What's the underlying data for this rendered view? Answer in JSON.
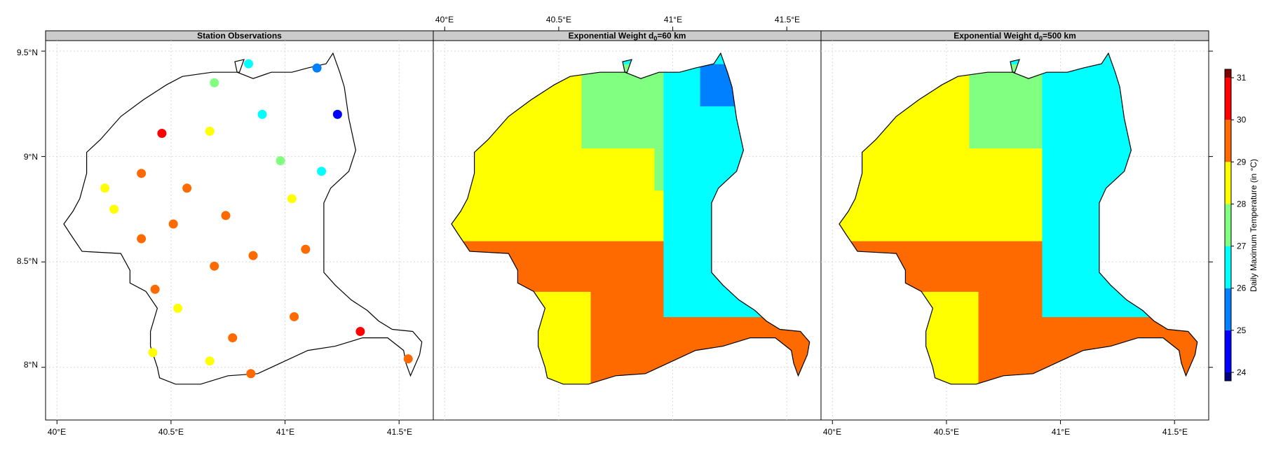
{
  "chart_data": [
    {
      "type": "scatter",
      "title": "Station Observations",
      "x_ticks": [
        "40°E",
        "40.5°E",
        "41°E",
        "41.5°E"
      ],
      "y_ticks": [
        "8°N",
        "8.5°N",
        "9°N",
        "9.5°N"
      ],
      "xlim": [
        39.95,
        41.65
      ],
      "ylim": [
        7.75,
        9.55
      ],
      "grid": true,
      "points": [
        {
          "lon": 40.84,
          "lat": 9.44,
          "value": 26.5
        },
        {
          "lon": 41.14,
          "lat": 9.42,
          "value": 25.5
        },
        {
          "lon": 40.69,
          "lat": 9.35,
          "value": 27.5
        },
        {
          "lon": 40.9,
          "lat": 9.2,
          "value": 26.5
        },
        {
          "lon": 41.23,
          "lat": 9.2,
          "value": 24.5
        },
        {
          "lon": 40.46,
          "lat": 9.11,
          "value": 30.5
        },
        {
          "lon": 40.67,
          "lat": 9.12,
          "value": 28.5
        },
        {
          "lon": 40.98,
          "lat": 8.98,
          "value": 27.5
        },
        {
          "lon": 40.37,
          "lat": 8.92,
          "value": 29.5
        },
        {
          "lon": 41.16,
          "lat": 8.93,
          "value": 26.5
        },
        {
          "lon": 40.21,
          "lat": 8.85,
          "value": 28.5
        },
        {
          "lon": 40.57,
          "lat": 8.85,
          "value": 29.5
        },
        {
          "lon": 41.03,
          "lat": 8.8,
          "value": 28.5
        },
        {
          "lon": 40.25,
          "lat": 8.75,
          "value": 28.5
        },
        {
          "lon": 40.74,
          "lat": 8.72,
          "value": 29.5
        },
        {
          "lon": 40.51,
          "lat": 8.68,
          "value": 29.5
        },
        {
          "lon": 40.37,
          "lat": 8.61,
          "value": 29.5
        },
        {
          "lon": 41.09,
          "lat": 8.56,
          "value": 29.5
        },
        {
          "lon": 40.86,
          "lat": 8.53,
          "value": 29.5
        },
        {
          "lon": 40.69,
          "lat": 8.48,
          "value": 29.5
        },
        {
          "lon": 40.43,
          "lat": 8.37,
          "value": 29.5
        },
        {
          "lon": 40.53,
          "lat": 8.28,
          "value": 28.5
        },
        {
          "lon": 41.04,
          "lat": 8.24,
          "value": 29.5
        },
        {
          "lon": 41.33,
          "lat": 8.17,
          "value": 30.5
        },
        {
          "lon": 40.77,
          "lat": 8.14,
          "value": 29.5
        },
        {
          "lon": 40.42,
          "lat": 8.07,
          "value": 28.5
        },
        {
          "lon": 41.54,
          "lat": 8.04,
          "value": 29.5
        },
        {
          "lon": 40.67,
          "lat": 8.03,
          "value": 28.5
        },
        {
          "lon": 40.85,
          "lat": 7.97,
          "value": 29.5
        }
      ]
    },
    {
      "type": "heatmap",
      "title_prefix": "Exponential Weight d",
      "title_sub": "0",
      "title_suffix": "=60 km",
      "x_ticks": [
        "40°E",
        "40.5°E",
        "41°E",
        "41.5°E"
      ],
      "xlim": [
        39.95,
        41.65
      ],
      "ylim": [
        7.75,
        9.55
      ],
      "zones": [
        {
          "value": 29.5,
          "region": "west-south-east lowlands"
        },
        {
          "value": 28.5,
          "region": "central band and southern pocket"
        },
        {
          "value": 27.5,
          "region": "northern band"
        },
        {
          "value": 26.5,
          "region": "northeast highlands"
        },
        {
          "value": 25.5,
          "region": "far northeast corner"
        }
      ]
    },
    {
      "type": "heatmap",
      "title_prefix": "Exponential Weight d",
      "title_sub": "0",
      "title_suffix": "=500 km",
      "x_ticks": [
        "40°E",
        "40.5°E",
        "41°E",
        "41.5°E"
      ],
      "xlim": [
        39.95,
        41.65
      ],
      "ylim": [
        7.75,
        9.55
      ],
      "zones": [
        {
          "value": 29.5,
          "region": "west-south-east lowlands"
        },
        {
          "value": 28.5,
          "region": "central band and southern pocket"
        },
        {
          "value": 27.5,
          "region": "northern band"
        },
        {
          "value": 26.5,
          "region": "northeast highlands"
        },
        {
          "value": 25.5,
          "region": "far northeast corner"
        }
      ]
    }
  ],
  "colorbar": {
    "label": "Daily Maximum Temperature (in °C)",
    "ticks": [
      "24",
      "25",
      "26",
      "27",
      "28",
      "29",
      "30",
      "31"
    ],
    "range": [
      23.8,
      31.2
    ],
    "bins": [
      {
        "from": 23.8,
        "to": 24.0,
        "color": "#00007f"
      },
      {
        "from": 24.0,
        "to": 25.0,
        "color": "#0000ff"
      },
      {
        "from": 25.0,
        "to": 26.0,
        "color": "#0080ff"
      },
      {
        "from": 26.0,
        "to": 27.0,
        "color": "#00ffff"
      },
      {
        "from": 27.0,
        "to": 28.0,
        "color": "#80ff80"
      },
      {
        "from": 28.0,
        "to": 29.0,
        "color": "#ffff00"
      },
      {
        "from": 29.0,
        "to": 30.0,
        "color": "#ff6a00"
      },
      {
        "from": 30.0,
        "to": 31.0,
        "color": "#ff0000"
      },
      {
        "from": 31.0,
        "to": 31.2,
        "color": "#7f0000"
      }
    ]
  }
}
